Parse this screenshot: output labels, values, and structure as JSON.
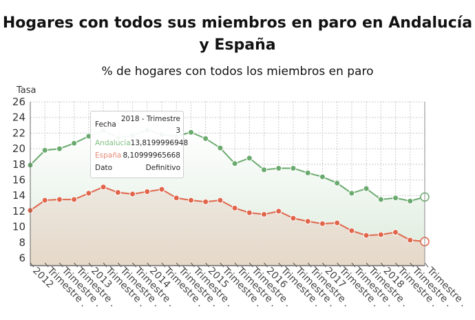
{
  "title": "Hogares con todos sus miembros en paro en Andalucía y España",
  "subtitle": "% de hogares con todos los miembros en paro",
  "chart_data": {
    "type": "area",
    "title": "Hogares con todos sus miembros en paro en Andalucía y España",
    "subtitle": "% de hogares con todos los miembros en paro",
    "ylabel": "Tasa",
    "xlabel": "",
    "ylim": [
      5,
      26
    ],
    "yticks": [
      6,
      8,
      10,
      12,
      14,
      16,
      18,
      20,
      22,
      24,
      26
    ],
    "grid": true,
    "categories": [
      "2012",
      "Trimestre .",
      "Trimestre .",
      "Trimestre .",
      "2013",
      "Trimestre .",
      "Trimestre .",
      "Trimestre .",
      "2014",
      "Trimestre .",
      "Trimestre .",
      "Trimestre .",
      "2015",
      "Trimestre .",
      "Trimestre .",
      "Trimestre .",
      "2016",
      "Trimestre .",
      "Trimestre .",
      "Trimestre .",
      "2017",
      "Trimestre .",
      "Trimestre .",
      "Trimestre .",
      "2018",
      "Trimestre .",
      "Trimestre .",
      "Trimestre ."
    ],
    "series": [
      {
        "name": "Andalucía",
        "color": "#6aaa6e",
        "values": [
          17.9,
          19.8,
          20.0,
          20.7,
          21.6,
          22.3,
          21.4,
          21.7,
          22.4,
          21.8,
          21.6,
          22.1,
          21.3,
          20.1,
          18.1,
          18.8,
          17.3,
          17.5,
          17.5,
          16.9,
          16.4,
          15.6,
          14.3,
          14.9,
          13.5,
          13.7,
          13.3,
          13.82
        ]
      },
      {
        "name": "España",
        "color": "#e0654a",
        "values": [
          12.1,
          13.4,
          13.5,
          13.5,
          14.3,
          15.1,
          14.4,
          14.2,
          14.5,
          14.8,
          13.7,
          13.4,
          13.2,
          13.4,
          12.4,
          11.8,
          11.6,
          12.0,
          11.1,
          10.7,
          10.4,
          10.5,
          9.5,
          8.9,
          9.0,
          9.3,
          8.3,
          8.11
        ]
      }
    ]
  },
  "tooltip": {
    "fecha_label": "Fecha",
    "fecha_value_line1": "2018 - Trimestre",
    "fecha_value_line2": "3",
    "andalucia_label": "Andalucía",
    "andalucia_value": "13,8199996948",
    "espana_label": "España",
    "espana_value": "8,10999965668",
    "dato_label": "Dato",
    "dato_value": "Definitivo"
  }
}
